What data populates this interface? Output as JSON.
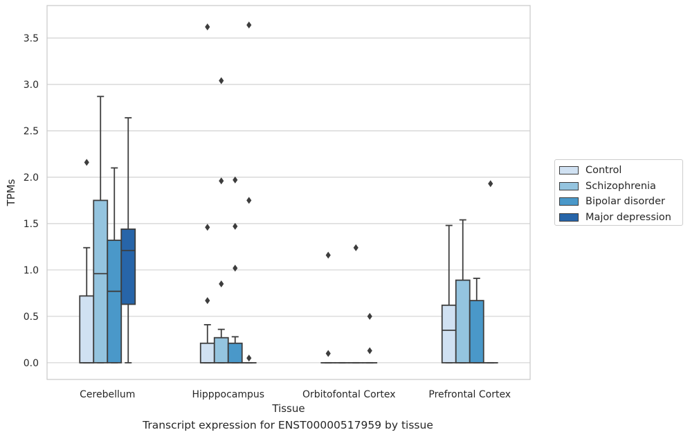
{
  "chart_data": {
    "type": "box",
    "xlabel": "Tissue",
    "ylabel": "TPMs",
    "ylim": [
      -0.18,
      3.85
    ],
    "yticks": [
      "0.0",
      "0.5",
      "1.0",
      "1.5",
      "2.0",
      "2.5",
      "3.0",
      "3.5"
    ],
    "grid": true,
    "legend_position": "right",
    "categories": [
      "Cerebellum",
      "Hipppocampus",
      "Orbitofontal Cortex",
      "Prefrontal Cortex"
    ],
    "series": [
      {
        "name": "Control",
        "color": "#d0e1f2",
        "boxes": [
          {
            "q1": 0,
            "median": 0,
            "q3": 0.72,
            "whisker_low": 0,
            "whisker_high": 1.24,
            "outliers": [
              2.16
            ]
          },
          {
            "q1": 0,
            "median": 0,
            "q3": 0.21,
            "whisker_low": 0,
            "whisker_high": 0.41,
            "outliers": [
              0.67,
              1.46,
              3.62
            ]
          },
          {
            "q1": 0,
            "median": 0,
            "q3": 0,
            "whisker_low": 0,
            "whisker_high": 0,
            "outliers": [
              0.1,
              1.16
            ]
          },
          {
            "q1": 0,
            "median": 0.35,
            "q3": 0.62,
            "whisker_low": 0,
            "whisker_high": 1.48,
            "outliers": []
          }
        ]
      },
      {
        "name": "Schizophrenia",
        "color": "#94c4df",
        "boxes": [
          {
            "q1": 0,
            "median": 0.96,
            "q3": 1.75,
            "whisker_low": 0,
            "whisker_high": 2.87,
            "outliers": []
          },
          {
            "q1": 0,
            "median": 0,
            "q3": 0.27,
            "whisker_low": 0,
            "whisker_high": 0.36,
            "outliers": [
              0.85,
              1.96,
              3.04
            ]
          },
          {
            "q1": 0,
            "median": 0,
            "q3": 0,
            "whisker_low": 0,
            "whisker_high": 0,
            "outliers": []
          },
          {
            "q1": 0,
            "median": 0,
            "q3": 0.89,
            "whisker_low": 0,
            "whisker_high": 1.54,
            "outliers": []
          }
        ]
      },
      {
        "name": "Bipolar disorder",
        "color": "#4a98c9",
        "boxes": [
          {
            "q1": 0,
            "median": 0.77,
            "q3": 1.32,
            "whisker_low": 0,
            "whisker_high": 2.1,
            "outliers": []
          },
          {
            "q1": 0,
            "median": 0,
            "q3": 0.21,
            "whisker_low": 0,
            "whisker_high": 0.28,
            "outliers": [
              1.02,
              1.47,
              1.97
            ]
          },
          {
            "q1": 0,
            "median": 0,
            "q3": 0,
            "whisker_low": 0,
            "whisker_high": 0,
            "outliers": [
              1.24
            ]
          },
          {
            "q1": 0,
            "median": 0,
            "q3": 0.67,
            "whisker_low": 0,
            "whisker_high": 0.91,
            "outliers": []
          }
        ]
      },
      {
        "name": "Major depression",
        "color": "#2765a9",
        "boxes": [
          {
            "q1": 0.63,
            "median": 1.21,
            "q3": 1.44,
            "whisker_low": 0,
            "whisker_high": 2.64,
            "outliers": []
          },
          {
            "q1": 0,
            "median": 0,
            "q3": 0,
            "whisker_low": 0,
            "whisker_high": 0,
            "outliers": [
              0.05,
              1.75,
              3.64
            ]
          },
          {
            "q1": 0,
            "median": 0,
            "q3": 0,
            "whisker_low": 0,
            "whisker_high": 0,
            "outliers": [
              0.13,
              0.5
            ]
          },
          {
            "q1": 0,
            "median": 0,
            "q3": 0,
            "whisker_low": 0,
            "whisker_high": 0,
            "outliers": [
              1.93
            ]
          }
        ]
      }
    ]
  },
  "caption": "Transcript expression for ENST00000517959 by tissue"
}
